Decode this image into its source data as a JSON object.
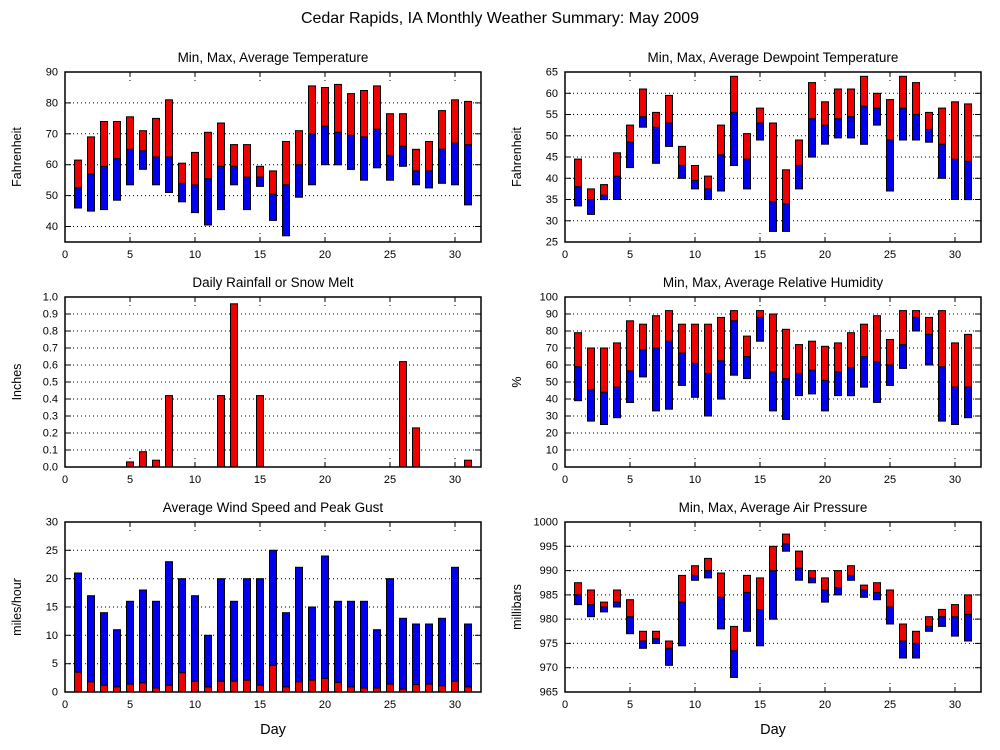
{
  "page_title": "Cedar Rapids, IA Monthly Weather Summary: May 2009",
  "colors": {
    "red": "#ee0000",
    "blue": "#0000ee"
  },
  "days": [
    1,
    2,
    3,
    4,
    5,
    6,
    7,
    8,
    9,
    10,
    11,
    12,
    13,
    14,
    15,
    16,
    17,
    18,
    19,
    20,
    21,
    22,
    23,
    24,
    25,
    26,
    27,
    28,
    29,
    30,
    31
  ],
  "chart_data": [
    {
      "type": "bar",
      "bar_style": "range",
      "title": "Min, Max, Average Temperature",
      "ylabel": "Fahrenheit",
      "xlabel": "",
      "xlim": [
        0,
        32
      ],
      "ylim": [
        35,
        90
      ],
      "xticks": [
        0,
        5,
        10,
        15,
        20,
        25,
        30
      ],
      "yticks": [
        40,
        50,
        60,
        70,
        80,
        90
      ],
      "ytick_decimals": 0,
      "grid": true,
      "series": {
        "min": [
          46,
          45,
          45.5,
          48.5,
          53.5,
          58.5,
          53.5,
          51,
          48,
          44.5,
          40.5,
          45.5,
          53.5,
          45.5,
          53,
          42,
          37,
          49.5,
          53.5,
          60,
          60,
          58.5,
          55,
          59,
          55,
          59.5,
          53.5,
          52.5,
          54,
          53.5,
          47
        ],
        "average": [
          52.5,
          57,
          59.5,
          62,
          65,
          64.5,
          62.5,
          62.5,
          54,
          53.5,
          55.5,
          59.5,
          59.5,
          56,
          56,
          50.5,
          53.5,
          60,
          70,
          72.5,
          70.5,
          69.5,
          69,
          71.5,
          63,
          66,
          58,
          58,
          65,
          67,
          66.5
        ],
        "max": [
          61.5,
          69,
          74,
          74,
          75.5,
          71,
          75,
          81,
          60.5,
          64,
          70.5,
          73.5,
          66.5,
          66.5,
          59.5,
          58,
          67.5,
          71,
          85.5,
          85,
          86,
          83,
          84,
          85.5,
          76.5,
          76.5,
          65,
          67.5,
          77.5,
          81,
          80.5
        ]
      }
    },
    {
      "type": "bar",
      "bar_style": "range",
      "title": "Min, Max, Average Dewpoint Temperature",
      "ylabel": "Fahrenheit",
      "xlabel": "",
      "xlim": [
        0,
        32
      ],
      "ylim": [
        25,
        65
      ],
      "xticks": [
        0,
        5,
        10,
        15,
        20,
        25,
        30
      ],
      "yticks": [
        25,
        30,
        35,
        40,
        45,
        50,
        55,
        60,
        65
      ],
      "ytick_decimals": 0,
      "grid": true,
      "series": {
        "min": [
          33.5,
          31.5,
          35,
          35,
          42.5,
          52,
          43.5,
          47.5,
          40,
          37.5,
          35,
          37,
          43,
          37.5,
          49,
          27.5,
          27.5,
          37.5,
          45,
          48,
          49.5,
          49.5,
          48,
          52.5,
          37,
          49,
          49,
          48.5,
          40,
          35,
          35
        ],
        "average": [
          38,
          35,
          36,
          40.5,
          48.5,
          54.5,
          52,
          53,
          43,
          39.5,
          37.5,
          45.5,
          55.5,
          44.5,
          53,
          34.5,
          34,
          43,
          54,
          52.5,
          54,
          54.5,
          57,
          56.5,
          49,
          56.5,
          55,
          51.5,
          48,
          44.5,
          44
        ],
        "max": [
          44.5,
          37.5,
          38.5,
          46,
          52.5,
          61,
          55.5,
          59.5,
          47.5,
          43,
          40.5,
          52.5,
          64,
          50.5,
          56.5,
          53,
          42,
          49,
          62.5,
          58,
          61,
          61,
          64,
          60,
          58.5,
          64,
          62.5,
          55.5,
          56.5,
          58,
          57.5
        ]
      }
    },
    {
      "type": "bar",
      "bar_style": "single",
      "title": "Daily Rainfall or Snow Melt",
      "ylabel": "Inches",
      "xlabel": "",
      "xlim": [
        0,
        32
      ],
      "ylim": [
        0,
        1.0
      ],
      "xticks": [
        0,
        5,
        10,
        15,
        20,
        25,
        30
      ],
      "yticks": [
        0.0,
        0.1,
        0.2,
        0.3,
        0.4,
        0.5,
        0.6,
        0.7,
        0.8,
        0.9,
        1.0
      ],
      "ytick_decimals": 1,
      "grid": true,
      "values": [
        0,
        0,
        0,
        0,
        0.03,
        0.09,
        0.04,
        0.42,
        0,
        0,
        0,
        0.42,
        0.96,
        0,
        0.42,
        0,
        0,
        0,
        0,
        0,
        0,
        0,
        0,
        0,
        0,
        0.62,
        0.23,
        0,
        0,
        0,
        0.04
      ]
    },
    {
      "type": "bar",
      "bar_style": "range",
      "title": "Min, Max, Average Relative Humidity",
      "ylabel": "%",
      "xlabel": "",
      "xlim": [
        0,
        32
      ],
      "ylim": [
        0,
        100
      ],
      "xticks": [
        0,
        5,
        10,
        15,
        20,
        25,
        30
      ],
      "yticks": [
        0,
        10,
        20,
        30,
        40,
        50,
        60,
        70,
        80,
        90,
        100
      ],
      "ytick_decimals": 0,
      "grid": true,
      "series": {
        "min": [
          39,
          27,
          25,
          29,
          38,
          53,
          33,
          34,
          48,
          41,
          30,
          40,
          54,
          52,
          74,
          33,
          28,
          42,
          43,
          33,
          42,
          42,
          47,
          38,
          48,
          58,
          80,
          60,
          27,
          25,
          29
        ],
        "average": [
          59,
          45.5,
          44,
          47,
          56.5,
          69,
          70,
          74,
          67,
          61,
          55,
          62.5,
          86,
          65,
          88,
          56,
          52,
          55,
          57,
          51,
          56,
          58.5,
          65,
          62,
          60,
          72,
          88,
          78,
          59,
          47,
          47
        ],
        "max": [
          79,
          70,
          70,
          73,
          86,
          84,
          89,
          92,
          84,
          84,
          84,
          88,
          92,
          77,
          92,
          90,
          81,
          72,
          74,
          71,
          73,
          79,
          84,
          89,
          75,
          92,
          92,
          88,
          92,
          73,
          78
        ]
      }
    },
    {
      "type": "bar",
      "bar_style": "stack",
      "title": "Average Wind Speed and Peak Gust",
      "ylabel": "miles/hour",
      "xlabel": "Day",
      "xlim": [
        0,
        32
      ],
      "ylim": [
        0,
        30
      ],
      "xticks": [
        0,
        5,
        10,
        15,
        20,
        25,
        30
      ],
      "yticks": [
        0,
        5,
        10,
        15,
        20,
        25,
        30
      ],
      "ytick_decimals": 0,
      "grid": true,
      "series": {
        "average": [
          3.5,
          1.8,
          1.2,
          0.9,
          1.4,
          1.6,
          0.7,
          1.2,
          3.4,
          1.9,
          0.9,
          1.9,
          1.9,
          2.1,
          1.2,
          4.7,
          0.9,
          1.8,
          2.1,
          2.4,
          1.7,
          0.9,
          0.7,
          0.7,
          1.4,
          0.5,
          1.3,
          1.4,
          1.1,
          1.9,
          0.9
        ],
        "peak_gust": [
          21,
          17,
          14,
          11,
          16,
          18,
          16,
          23,
          20,
          17,
          10,
          20,
          16,
          20,
          20,
          25,
          14,
          22,
          15,
          24,
          16,
          16,
          16,
          11,
          20,
          13,
          12,
          12,
          13,
          22,
          12
        ]
      }
    },
    {
      "type": "bar",
      "bar_style": "range",
      "title": "Min, Max, Average Air Pressure",
      "ylabel": "millibars",
      "xlabel": "Day",
      "xlim": [
        0,
        32
      ],
      "ylim": [
        965,
        1000
      ],
      "xticks": [
        0,
        5,
        10,
        15,
        20,
        25,
        30
      ],
      "yticks": [
        965,
        970,
        975,
        980,
        985,
        990,
        995,
        1000
      ],
      "ytick_decimals": 0,
      "grid": true,
      "series": {
        "min": [
          983,
          980.5,
          981.5,
          982.5,
          977,
          974,
          975,
          970.5,
          974.5,
          988,
          988.5,
          978,
          968,
          977.5,
          974.5,
          980,
          994,
          988,
          987.5,
          983.5,
          985,
          988,
          984.5,
          984,
          979,
          972,
          972,
          977.5,
          978.5,
          976.5,
          975.5
        ],
        "average": [
          985,
          983,
          982.5,
          983.5,
          980.5,
          975.5,
          976,
          974,
          983.5,
          989,
          990,
          984.5,
          973.5,
          985.5,
          982,
          990,
          995.5,
          990.5,
          988.5,
          986,
          986.5,
          989,
          986,
          985.5,
          982.5,
          975.5,
          975,
          978.5,
          980.5,
          980.5,
          981
        ],
        "max": [
          987.5,
          986,
          983.5,
          986,
          984,
          977.5,
          977.5,
          975.5,
          989,
          991,
          992.5,
          989.5,
          978.5,
          989,
          988.5,
          995,
          997.5,
          994,
          990,
          988.5,
          990,
          991,
          987,
          987.5,
          986,
          979,
          977.5,
          980.5,
          982,
          983,
          985
        ]
      }
    }
  ]
}
